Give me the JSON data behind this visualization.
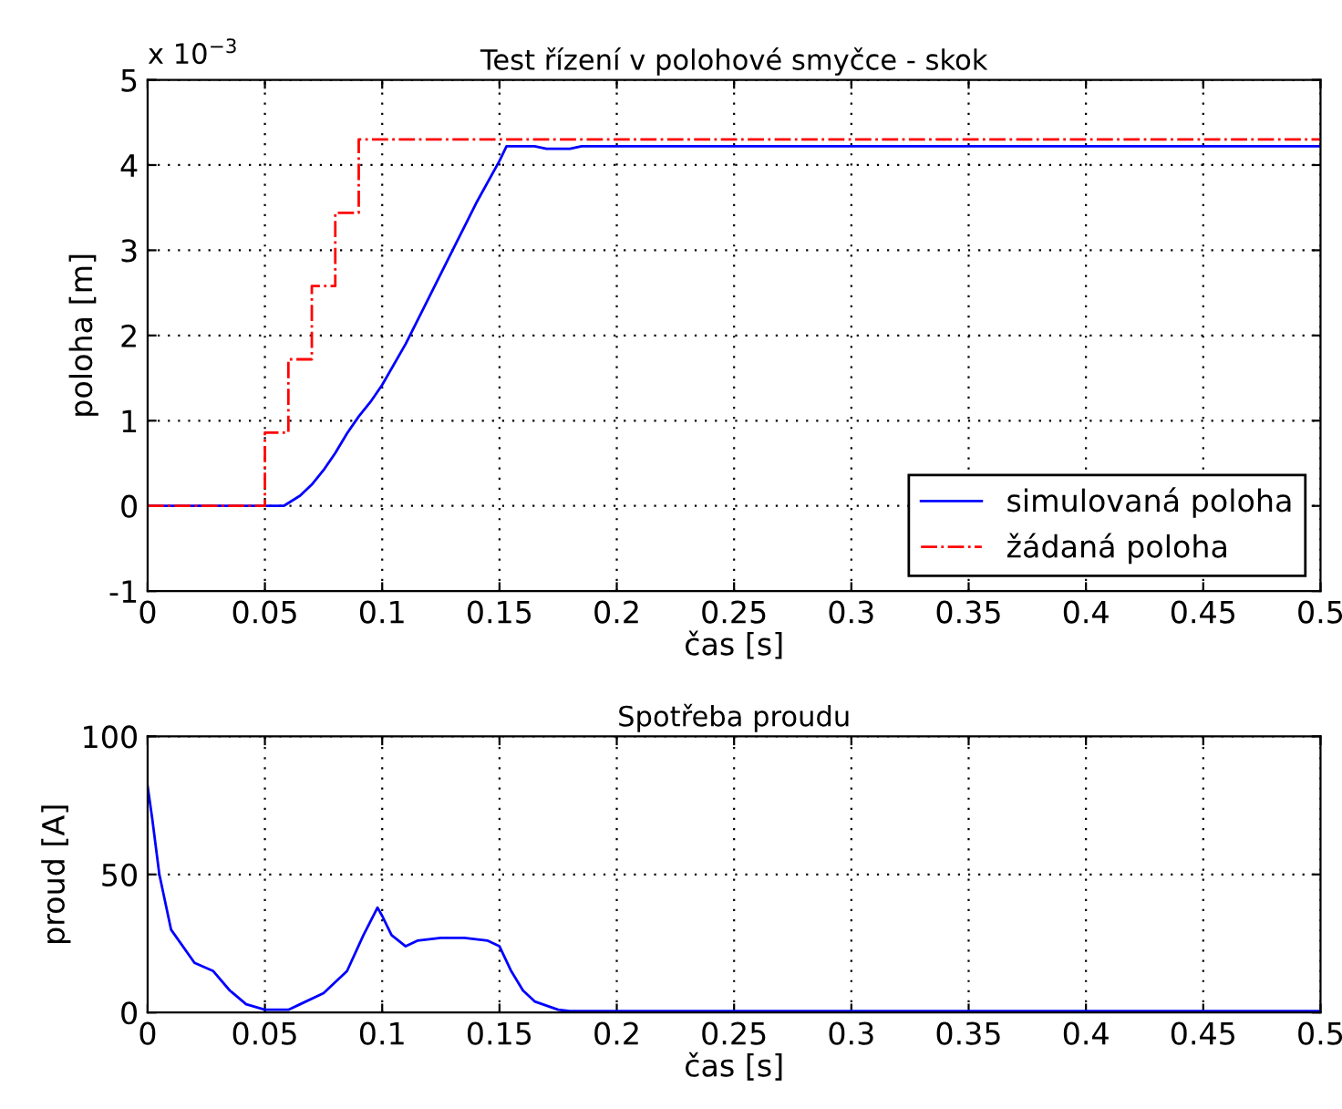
{
  "chart_data": [
    {
      "type": "line",
      "title": "Test řízení v polohové smyčce - skok",
      "xlabel": "čas [s]",
      "ylabel": "poloha [m]",
      "annotations": [
        "x 10$^{−3}$"
      ],
      "xlim": [
        0,
        0.5
      ],
      "xticks": [
        0,
        0.05,
        0.1,
        0.15,
        0.2,
        0.25,
        0.3,
        0.35,
        0.4,
        0.45,
        0.5
      ],
      "ylim": [
        -1,
        5
      ],
      "yticks": [
        -1,
        0,
        1,
        2,
        3,
        4,
        5
      ],
      "grid": true,
      "legend": "bottom right",
      "series": [
        {
          "name": "simulovaná poloha",
          "color": "#0000ff",
          "line_style": "solid",
          "x": [
            0,
            0.058,
            0.065,
            0.07,
            0.075,
            0.08,
            0.085,
            0.09,
            0.095,
            0.1,
            0.11,
            0.12,
            0.13,
            0.14,
            0.15,
            0.153,
            0.165,
            0.17,
            0.18,
            0.185,
            0.5
          ],
          "values": [
            0,
            0,
            0.12,
            0.25,
            0.42,
            0.62,
            0.85,
            1.05,
            1.22,
            1.42,
            1.9,
            2.45,
            3.0,
            3.55,
            4.05,
            4.22,
            4.22,
            4.19,
            4.19,
            4.22,
            4.22
          ]
        },
        {
          "name": "žádaná poloha",
          "color": "#ff0000",
          "line_style": "dashdot",
          "type": "step",
          "x": [
            0,
            0.05,
            0.06,
            0.07,
            0.08,
            0.09,
            0.5
          ],
          "values": [
            0,
            0.86,
            1.72,
            2.58,
            3.44,
            4.3,
            4.3
          ]
        }
      ]
    },
    {
      "type": "line",
      "title": "Spotřeba proudu",
      "xlabel": "čas [s]",
      "ylabel": "proud [A]",
      "xlim": [
        0,
        0.5
      ],
      "xticks": [
        0,
        0.05,
        0.1,
        0.15,
        0.2,
        0.25,
        0.3,
        0.35,
        0.4,
        0.45,
        0.5
      ],
      "ylim": [
        0,
        100
      ],
      "yticks": [
        0,
        50,
        100
      ],
      "grid": true,
      "series": [
        {
          "color": "#0000ff",
          "line_style": "solid",
          "x": [
            0,
            0.002,
            0.005,
            0.01,
            0.02,
            0.028,
            0.035,
            0.042,
            0.05,
            0.06,
            0.065,
            0.075,
            0.085,
            0.092,
            0.098,
            0.1,
            0.104,
            0.11,
            0.115,
            0.125,
            0.135,
            0.145,
            0.15,
            0.155,
            0.16,
            0.165,
            0.175,
            0.18,
            0.5
          ],
          "values": [
            82,
            70,
            50,
            30,
            18,
            15,
            8,
            3,
            1,
            1,
            3,
            7,
            15,
            28,
            38,
            35,
            28,
            24,
            26,
            27,
            27,
            26,
            24,
            15,
            8,
            4,
            1,
            0.5,
            0.5
          ]
        }
      ]
    }
  ]
}
